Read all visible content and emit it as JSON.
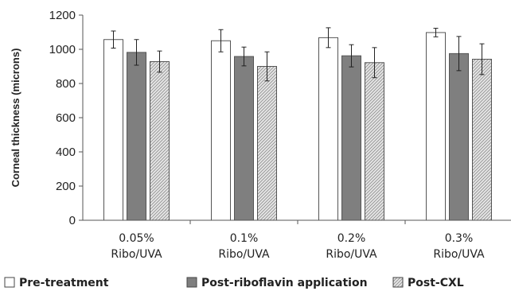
{
  "chart_data": {
    "type": "bar",
    "ylabel": "Corneal thickness (microns)",
    "ylim": [
      0,
      1200
    ],
    "yticks": [
      "0",
      "200",
      "400",
      "600",
      "800",
      "1000",
      "1200"
    ],
    "categories": [
      [
        "0.05%",
        "Ribo/UVA"
      ],
      [
        "0.1%",
        "Ribo/UVA"
      ],
      [
        "0.2%",
        "Ribo/UVA"
      ],
      [
        "0.3%",
        "Ribo/UVA"
      ]
    ],
    "series": [
      {
        "name": "Pre-treatment",
        "values": [
          1057,
          1050,
          1068,
          1098
        ],
        "errors": [
          50,
          65,
          58,
          25
        ],
        "fill": "#ffffff",
        "pattern": "none"
      },
      {
        "name": "Post-riboflavin application",
        "values": [
          982,
          958,
          962,
          975
        ],
        "errors": [
          75,
          55,
          65,
          100
        ],
        "fill": "#7f7f7f",
        "pattern": "none"
      },
      {
        "name": "Post-CXL",
        "values": [
          928,
          900,
          922,
          942
        ],
        "errors": [
          62,
          85,
          88,
          90
        ],
        "fill": "#d9d9d9",
        "pattern": "hatch"
      }
    ],
    "legend_position": "bottom",
    "grid": false
  }
}
